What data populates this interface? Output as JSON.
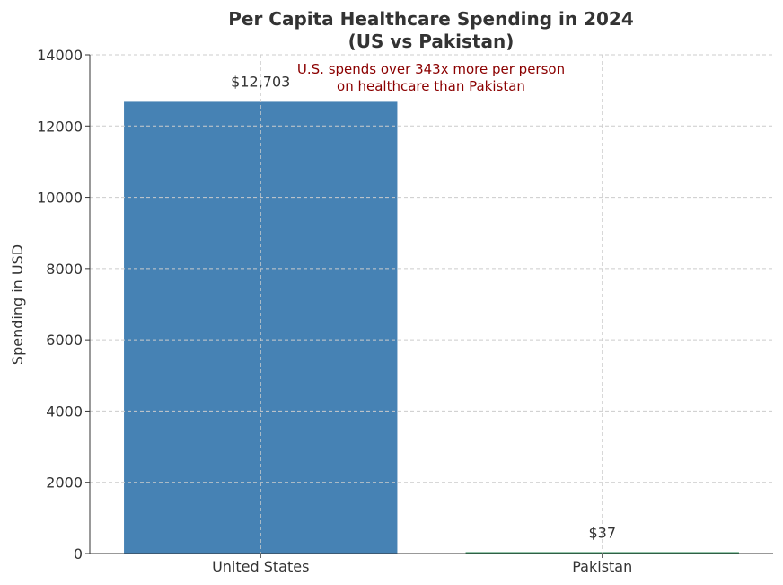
{
  "chart_data": {
    "type": "bar",
    "title_line1": "Per Capita Healthcare Spending in 2024",
    "title_line2": "(US vs Pakistan)",
    "xlabel": "",
    "ylabel": "Spending in USD",
    "categories": [
      "United States",
      "Pakistan"
    ],
    "values": [
      12703,
      37
    ],
    "value_labels": [
      "$12,703",
      "$37"
    ],
    "ylim": [
      0,
      14000
    ],
    "yticks": [
      0,
      2000,
      4000,
      6000,
      8000,
      10000,
      12000,
      14000
    ],
    "ytick_labels": [
      "0",
      "2000",
      "4000",
      "6000",
      "8000",
      "10000",
      "12000",
      "14000"
    ],
    "grid": true,
    "bar_colors": [
      "#4682b4",
      "#2e8b57"
    ],
    "annotation_line1": "U.S. spends over 343x more per person",
    "annotation_line2": "on healthcare than Pakistan",
    "annotation_color": "#8b0000",
    "text_color": "#333333"
  }
}
